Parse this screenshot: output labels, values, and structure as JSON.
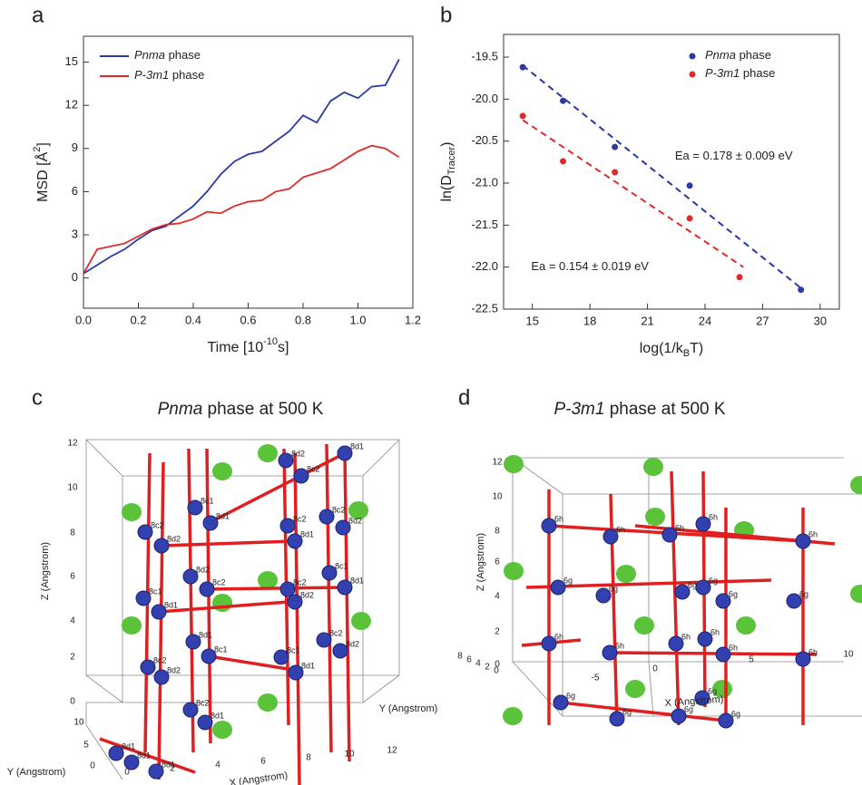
{
  "chart_data": [
    {
      "type": "line",
      "panel_label": "a",
      "x_label_parts": [
        "Time [10",
        "-10",
        "s]"
      ],
      "y_label_parts": [
        "MSD [Å",
        "2",
        "]"
      ],
      "x": [
        0,
        0.05,
        0.1,
        0.15,
        0.2,
        0.25,
        0.3,
        0.35,
        0.4,
        0.45,
        0.5,
        0.55,
        0.6,
        0.65,
        0.7,
        0.75,
        0.8,
        0.85,
        0.9,
        0.95,
        1.0,
        1.05,
        1.1,
        1.15
      ],
      "series": [
        {
          "name": "Pnma phase",
          "color": "#2b3aa6",
          "values": [
            0.3,
            0.9,
            1.5,
            2.0,
            2.7,
            3.3,
            3.6,
            4.3,
            5.0,
            6.0,
            7.2,
            8.1,
            8.6,
            8.8,
            9.5,
            10.2,
            11.3,
            10.8,
            12.3,
            12.9,
            12.5,
            13.3,
            13.4,
            15.2
          ]
        },
        {
          "name": "P-3m1 phase",
          "color": "#e02a2a",
          "values": [
            0.3,
            2.0,
            2.2,
            2.4,
            2.9,
            3.4,
            3.7,
            3.8,
            4.1,
            4.6,
            4.5,
            5.0,
            5.3,
            5.4,
            6.0,
            6.2,
            7.0,
            7.3,
            7.6,
            8.2,
            8.8,
            9.2,
            9.0,
            8.4
          ]
        }
      ],
      "xlim": [
        0,
        1.2
      ],
      "xticks": [
        {
          "value": 0,
          "label": "0.0"
        },
        0.2,
        0.4,
        0.6,
        0.8,
        {
          "value": 1,
          "label": "1.0"
        },
        1.2
      ],
      "ylim": [
        -2.1,
        16.8
      ],
      "yticks": [
        0,
        3,
        6,
        9,
        12,
        15
      ],
      "legend": "upper-left"
    },
    {
      "type": "scatter",
      "panel_label": "b",
      "x_label_parts": [
        "log(1/k",
        "B",
        "T)"
      ],
      "y_label_parts": [
        "ln(D",
        "Tracer",
        ")"
      ],
      "series": [
        {
          "name": "Pnma phase",
          "color": "#2b3aa6",
          "x": [
            14.5,
            16.6,
            19.3,
            23.2,
            29.0
          ],
          "values": [
            -19.62,
            -20.02,
            -20.57,
            -21.03,
            -22.27
          ]
        },
        {
          "name": "P-3m1 phase",
          "color": "#e02a2a",
          "x": [
            14.5,
            16.6,
            19.3,
            23.2,
            25.8
          ],
          "values": [
            -20.2,
            -20.74,
            -20.87,
            -21.42,
            -22.12
          ]
        }
      ],
      "fits": [
        {
          "color": "#2b3aa6",
          "x": [
            14.5,
            29.0
          ],
          "values": [
            -19.6,
            -22.25
          ]
        },
        {
          "color": "#e02a2a",
          "x": [
            14.5,
            26.0
          ],
          "values": [
            -20.25,
            -22.0
          ]
        }
      ],
      "annotations": [
        {
          "text": "Ea = 0.178 ± 0.009 eV",
          "color": "#2b3aa6",
          "x": 25.5,
          "y": -20.68
        },
        {
          "text": "Ea = 0.154 ± 0.019 eV",
          "color": "#e02a2a",
          "x": 18.0,
          "y": -22.0
        }
      ],
      "xlim": [
        13.5,
        31
      ],
      "xticks": [
        15,
        18,
        21,
        24,
        27,
        30
      ],
      "ylim": [
        -22.5,
        -19.23
      ],
      "yticks": [
        -19.5,
        {
          "value": -20,
          "label": "-20.0"
        },
        -20.5,
        {
          "value": -21,
          "label": "-21.0"
        },
        -21.5,
        {
          "value": -22,
          "label": "-22.0"
        },
        -22.5
      ],
      "legend": "upper-right"
    }
  ],
  "structures": [
    {
      "panel_label": "c",
      "title_italic": "Pnma",
      "title_rest": " phase at 500 K",
      "x_label": "X (Angstrom)",
      "y_label": "Y (Angstrom)",
      "z_label": "Z (Angstrom)",
      "x_ticks": [
        0,
        2,
        4,
        6,
        8,
        10,
        12
      ],
      "y_ticks": [
        10,
        5,
        0
      ],
      "z_ticks": [
        12,
        10,
        8,
        6,
        4,
        2,
        0
      ],
      "sites": [
        "8c1",
        "8d1",
        "8c2",
        "8d2",
        "8d2",
        "8c2",
        "8c1",
        "8d1",
        "8d1",
        "8c1",
        "8c2",
        "8d2",
        "8c2",
        "8d1",
        "8d1",
        "8d1",
        "8d1",
        "8d2",
        "8c2",
        "8d1",
        "8c2",
        "8d1",
        "8c2",
        "8d2",
        "8c2",
        "8d2",
        "8c1",
        "8d1",
        "8c1",
        "8d1",
        "8c2",
        "8d2"
      ]
    },
    {
      "panel_label": "d",
      "title_italic": "P-3m1",
      "title_rest": " phase at 500 K",
      "x_label": "X (Angstrom)",
      "y_label": "Y (Angstrom)",
      "z_label": "Z (Angstrom)",
      "x_ticks": [
        -5,
        0,
        5,
        10
      ],
      "y_ticks": [
        8,
        6,
        4,
        2,
        0
      ],
      "z_ticks": [
        12,
        10,
        8,
        6,
        4,
        2,
        0
      ],
      "sites": [
        "6h",
        "6g",
        "6h",
        "6g",
        "6h",
        "6g",
        "6h",
        "6g",
        "6h",
        "6g",
        "6h",
        "6g",
        "6h",
        "6g",
        "6h",
        "6g",
        "6g",
        "6h",
        "6g",
        "6h",
        "6g",
        "6h"
      ]
    }
  ]
}
